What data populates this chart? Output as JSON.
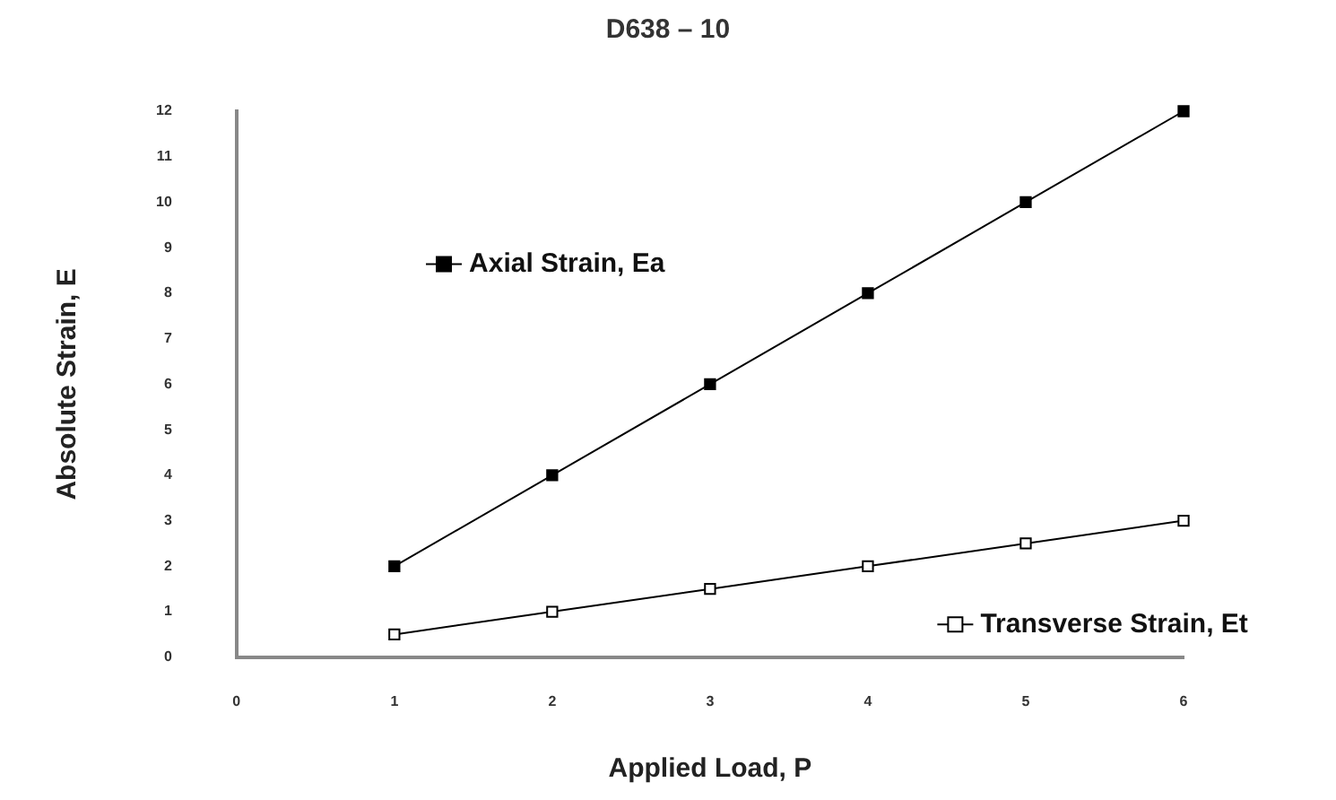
{
  "chart_data": {
    "type": "line",
    "title": "D638 – 10",
    "xlabel": "Applied Load, P",
    "ylabel": "Absolute Strain, E",
    "x": [
      1,
      2,
      3,
      4,
      5,
      6
    ],
    "series": [
      {
        "name": "Axial Strain, Ea",
        "color": "#000000",
        "marker": "square",
        "values": [
          2,
          4,
          6,
          8,
          10,
          12
        ]
      },
      {
        "name": "Transverse Strain, Et",
        "color": "#000000",
        "marker": "square_open",
        "values": [
          0.5,
          1,
          1.5,
          2,
          2.5,
          3
        ]
      }
    ],
    "xlim": [
      0,
      6
    ],
    "xticks": [
      0,
      1,
      2,
      3,
      4,
      5,
      6
    ],
    "ylim": [
      0,
      12
    ],
    "yticks": [
      0,
      1,
      2,
      3,
      4,
      5,
      6,
      7,
      8,
      9,
      10,
      11,
      12
    ],
    "grid": false,
    "legend": "bottom right",
    "line_style": "solid"
  }
}
